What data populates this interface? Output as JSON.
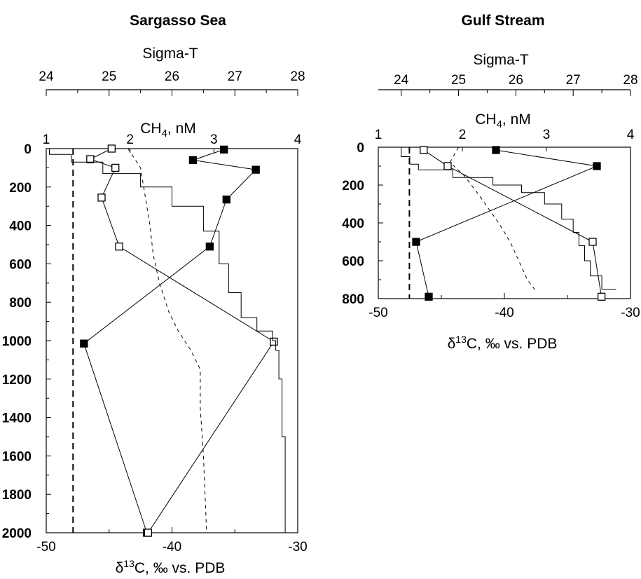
{
  "chart_data": [
    {
      "type": "scatter",
      "title": "Sargasso Sea",
      "top_axis_label": "Sigma-T",
      "top_axis_ticks": [
        "24",
        "25",
        "26",
        "27",
        "28"
      ],
      "top_axis_range": [
        24,
        28
      ],
      "middle_axis_label_main": "CH",
      "middle_axis_label_sub": "4",
      "middle_axis_label_rest": ", nM",
      "middle_axis_ticks": [
        "1",
        "2",
        "3",
        "4"
      ],
      "middle_axis_range": [
        1,
        4
      ],
      "bottom_axis_label_pre": "δ",
      "bottom_axis_label_sup": "13",
      "bottom_axis_label_rest": "C, ‰ vs. PDB",
      "bottom_axis_ticks": [
        "-50",
        "-40",
        "-30"
      ],
      "bottom_axis_range": [
        -50,
        -30
      ],
      "depth_ticks": [
        "0",
        "200",
        "400",
        "600",
        "800",
        "1000",
        "1200",
        "1400",
        "1600",
        "1800",
        "2000"
      ],
      "depth_range": [
        0,
        2000
      ],
      "atmospheric_ch4_nM": 1.32,
      "series": [
        {
          "axis": "CH4",
          "marker": "filled-square",
          "points": [
            [
              3.12,
              5
            ],
            [
              2.75,
              60
            ],
            [
              3.5,
              110
            ],
            [
              3.15,
              265
            ],
            [
              2.95,
              510
            ],
            [
              1.45,
              1015
            ],
            [
              2.2,
              2000
            ]
          ]
        },
        {
          "axis": "d13C",
          "marker": "open-square",
          "points": [
            [
              -44.8,
              0
            ],
            [
              -46.5,
              55
            ],
            [
              -44.5,
              100
            ],
            [
              -45.6,
              255
            ],
            [
              -44.2,
              510
            ],
            [
              -31.9,
              1005
            ],
            [
              -41.9,
              2000
            ]
          ]
        },
        {
          "axis": "SigmaT",
          "style": "solid-stepped",
          "points": [
            [
              24.05,
              0
            ],
            [
              24.4,
              30
            ],
            [
              24.9,
              70
            ],
            [
              25.5,
              130
            ],
            [
              26.0,
              200
            ],
            [
              26.5,
              300
            ],
            [
              26.75,
              430
            ],
            [
              26.9,
              600
            ],
            [
              27.1,
              750
            ],
            [
              27.35,
              880
            ],
            [
              27.6,
              950
            ],
            [
              27.65,
              1000
            ],
            [
              27.7,
              1050
            ],
            [
              27.75,
              1200
            ],
            [
              27.8,
              1500
            ],
            [
              27.85,
              2000
            ]
          ]
        },
        {
          "axis": "SigmaT",
          "style": "dashed",
          "points": [
            [
              25.3,
              0
            ],
            [
              25.5,
              100
            ],
            [
              25.55,
              200
            ],
            [
              25.6,
              300
            ],
            [
              25.65,
              400
            ],
            [
              25.7,
              550
            ],
            [
              25.8,
              700
            ],
            [
              25.95,
              850
            ],
            [
              26.1,
              950
            ],
            [
              26.3,
              1050
            ],
            [
              26.45,
              1150
            ],
            [
              26.45,
              1350
            ],
            [
              26.5,
              1600
            ],
            [
              26.55,
              2000
            ]
          ]
        }
      ]
    },
    {
      "type": "scatter",
      "title": "Gulf Stream",
      "top_axis_label": "Sigma-T",
      "top_axis_ticks": [
        "24",
        "25",
        "26",
        "27",
        "28"
      ],
      "top_axis_range": [
        23.6,
        28.0
      ],
      "middle_axis_label_main": "CH",
      "middle_axis_label_sub": "4",
      "middle_axis_label_rest": ", nM",
      "middle_axis_ticks": [
        "1",
        "2",
        "3",
        "4"
      ],
      "middle_axis_range": [
        1,
        4
      ],
      "bottom_axis_label_pre": "δ",
      "bottom_axis_label_sup": "13",
      "bottom_axis_label_rest": "C, ‰ vs. PDB",
      "bottom_axis_ticks": [
        "-50",
        "-40",
        "-30"
      ],
      "bottom_axis_range": [
        -50,
        -30
      ],
      "depth_ticks": [
        "0",
        "200",
        "400",
        "600",
        "800"
      ],
      "depth_range": [
        0,
        800
      ],
      "atmospheric_ch4_nM": 1.37,
      "series": [
        {
          "axis": "CH4",
          "marker": "filled-square",
          "points": [
            [
              2.4,
              15
            ],
            [
              3.6,
              100
            ],
            [
              1.45,
              500
            ],
            [
              1.6,
              790
            ]
          ]
        },
        {
          "axis": "d13C",
          "marker": "open-square",
          "points": [
            [
              -46.4,
              15
            ],
            [
              -44.5,
              100
            ],
            [
              -33.0,
              500
            ],
            [
              -32.3,
              790
            ]
          ]
        },
        {
          "axis": "SigmaT",
          "style": "solid-stepped",
          "points": [
            [
              24.0,
              0
            ],
            [
              24.15,
              50
            ],
            [
              24.3,
              90
            ],
            [
              24.9,
              120
            ],
            [
              25.6,
              160
            ],
            [
              26.1,
              200
            ],
            [
              26.5,
              240
            ],
            [
              26.8,
              300
            ],
            [
              27.0,
              380
            ],
            [
              27.1,
              450
            ],
            [
              27.2,
              520
            ],
            [
              27.3,
              600
            ],
            [
              27.5,
              680
            ],
            [
              27.75,
              750
            ]
          ]
        },
        {
          "axis": "SigmaT",
          "style": "dashed",
          "points": [
            [
              25.0,
              0
            ],
            [
              24.85,
              80
            ],
            [
              25.1,
              150
            ],
            [
              25.35,
              250
            ],
            [
              25.7,
              400
            ],
            [
              25.9,
              500
            ],
            [
              26.05,
              600
            ],
            [
              26.2,
              700
            ],
            [
              26.35,
              760
            ]
          ]
        }
      ]
    }
  ]
}
